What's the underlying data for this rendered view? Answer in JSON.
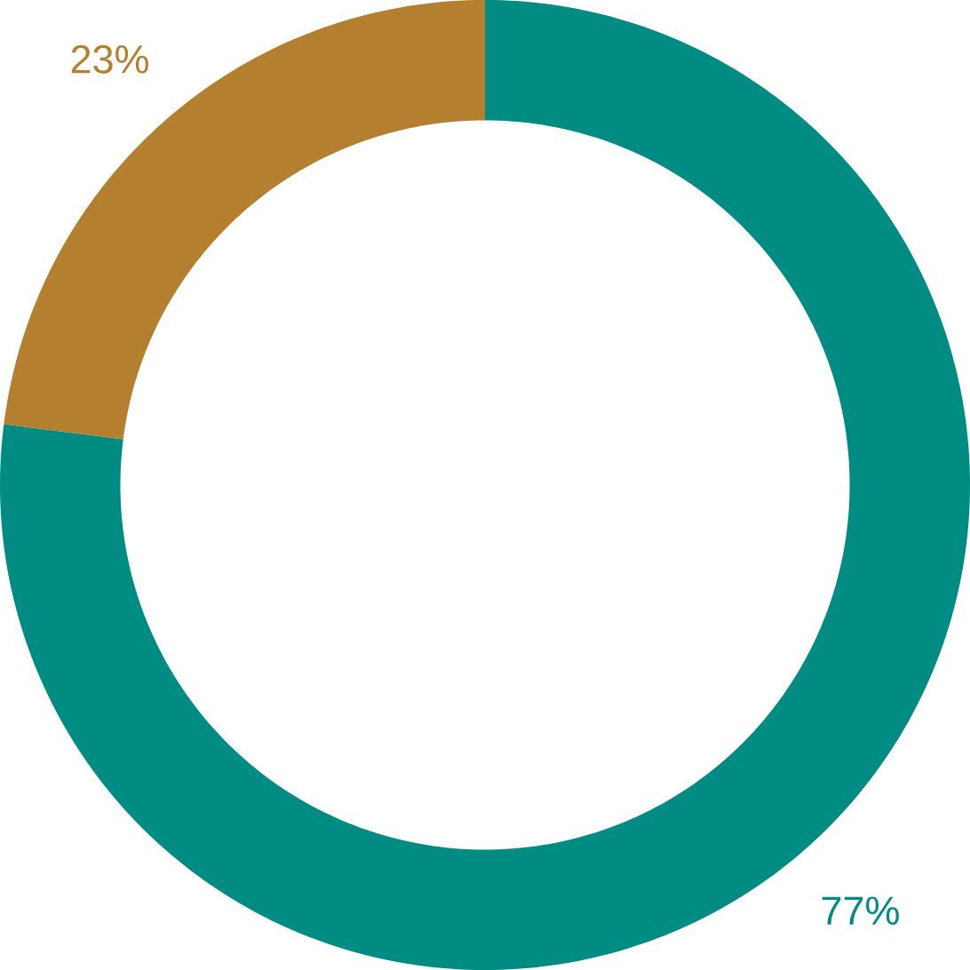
{
  "chart_data": {
    "type": "donut",
    "categories": [
      null,
      null
    ],
    "values": [
      77,
      23
    ],
    "colors": [
      "#008c82",
      "#b57f30"
    ],
    "value_labels": [
      "77%",
      "23%"
    ]
  }
}
